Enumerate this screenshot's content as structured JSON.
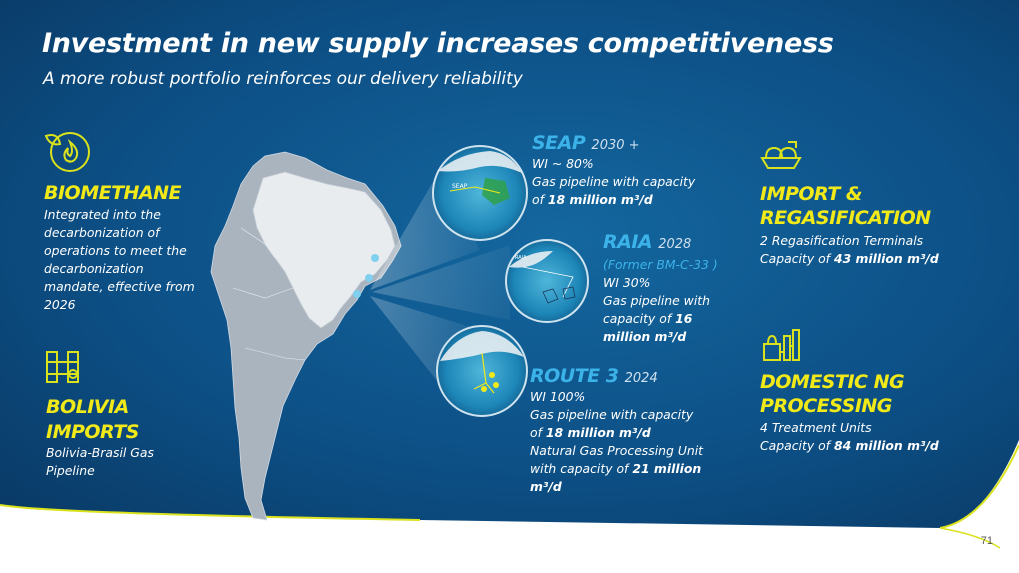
{
  "title": "Investment in new supply increases competitiveness",
  "subtitle": "A more robust portfolio reinforces our delivery reliability",
  "biomethane": {
    "heading": "BIOMETHANE",
    "lines": [
      "Integrated into the",
      "decarbonization of",
      "operations to meet the",
      "decarbonization",
      "mandate, effective from",
      "2026"
    ],
    "icon": "biomethane-flame-leaf-icon"
  },
  "bolivia": {
    "heading_1": "BOLIVIA",
    "heading_2": "IMPORTS",
    "lines": [
      "Bolivia-Brasil Gas",
      "Pipeline"
    ],
    "icon": "pipeline-valve-icon"
  },
  "seap": {
    "heading": "SEAP",
    "year": "2030 +",
    "wi": "WI ~ 80%",
    "line_1": "Gas pipeline with capacity",
    "line_2_pre": "of ",
    "line_2_bold": "18 million m³/d"
  },
  "raia": {
    "heading": "RAIA",
    "year": "2028",
    "former": "(Former BM-C-33 )",
    "wi": "WI 30%",
    "line_1": "Gas pipeline with",
    "line_2_pre": "capacity of ",
    "line_2_bold": "16",
    "line_3_bold": "million m³/d"
  },
  "route3": {
    "heading": "ROUTE 3",
    "year": "2024",
    "wi": "WI 100%",
    "line_1": "Gas pipeline with capacity",
    "line_2_pre": "of ",
    "line_2_bold": "18 million m³/d",
    "line_3": "Natural Gas Processing Unit",
    "line_4_pre": "with capacity of ",
    "line_4_bold": "21 million",
    "line_5_bold": "m³/d"
  },
  "import": {
    "heading_1": "IMPORT &",
    "heading_2": "REGASIFICATION",
    "line_1": "2 Regasification Terminals",
    "line_2_pre": "Capacity of  ",
    "line_2_bold": "43 million m³/d",
    "icon": "lng-ship-icon"
  },
  "domestic": {
    "heading_1": "DOMESTIC NG",
    "heading_2": "PROCESSING",
    "line_1": "4  Treatment Units",
    "line_2_pre": "Capacity of ",
    "line_2_bold": "84 million m³/d",
    "icon": "processing-plant-icon"
  },
  "map_labels": {
    "seap_tag": "SEAP",
    "raia_tag": "RAIA"
  },
  "page_number": "71",
  "colors": {
    "background_dark": "#0b3f6e",
    "background_mid": "#0e5a92",
    "accent_yellow": "#f2ea18",
    "accent_blue": "#3cb3e8"
  }
}
